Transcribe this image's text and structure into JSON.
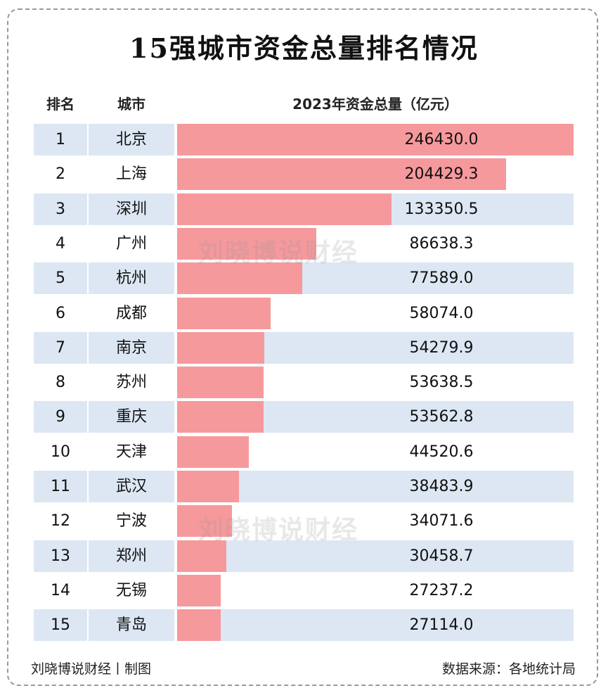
{
  "title": "15强城市资金总量排名情况",
  "headers": {
    "rank": "排名",
    "city": "城市",
    "value": "2023年资金总量（亿元）"
  },
  "watermark": "刘晓博说财经",
  "footer": {
    "left": "刘晓博说财经丨制图",
    "right": "数据来源：各地统计局"
  },
  "colors": {
    "bar": "#f6999c",
    "stripe": "#dce7f3"
  },
  "chart_data": {
    "type": "bar",
    "orientation": "horizontal",
    "title": "15强城市资金总量排名情况",
    "value_label": "2023年资金总量（亿元）",
    "xlim": [
      0,
      246430
    ],
    "categories": [
      "北京",
      "上海",
      "深圳",
      "广州",
      "杭州",
      "成都",
      "南京",
      "苏州",
      "重庆",
      "天津",
      "武汉",
      "宁波",
      "郑州",
      "无锡",
      "青岛"
    ],
    "ranks": [
      "1",
      "2",
      "3",
      "4",
      "5",
      "6",
      "7",
      "8",
      "9",
      "10",
      "11",
      "12",
      "13",
      "14",
      "15"
    ],
    "values": [
      246430.0,
      204429.3,
      133350.5,
      86638.3,
      77589.0,
      58074.0,
      54279.9,
      53638.5,
      53562.8,
      44520.6,
      38483.9,
      34071.6,
      30458.7,
      27237.2,
      27114.0
    ],
    "labels": [
      "246430.0",
      "204429.3",
      "133350.5",
      "86638.3",
      "77589.0",
      "58074.0",
      "54279.9",
      "53638.5",
      "53562.8",
      "44520.6",
      "38483.9",
      "34071.6",
      "30458.7",
      "27237.2",
      "27114.0"
    ]
  }
}
